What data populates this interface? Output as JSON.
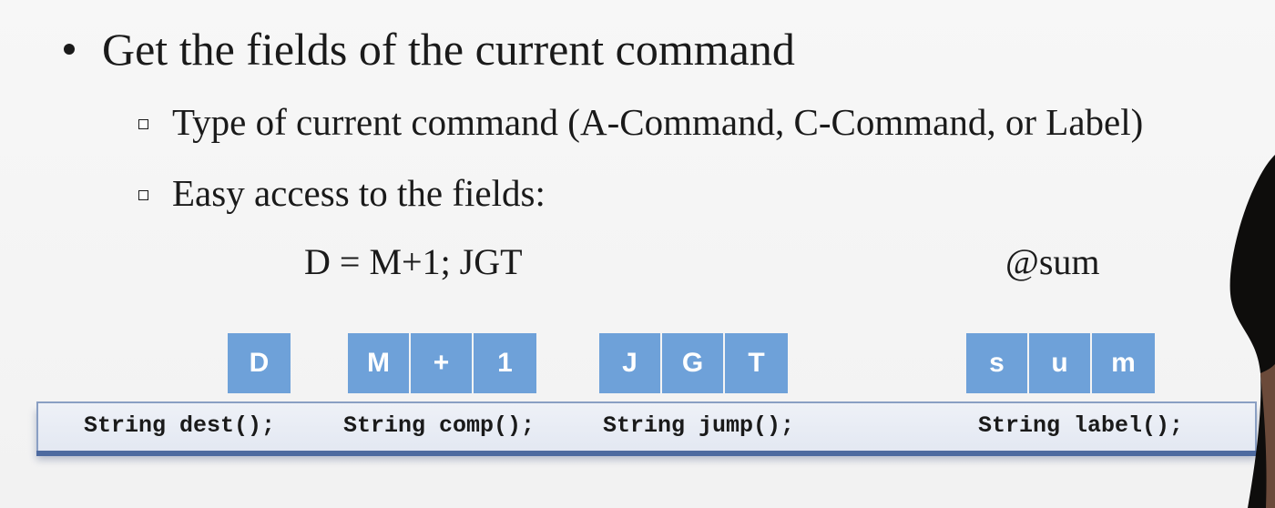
{
  "main_bullet": "Get the fields of the current command",
  "sub_bullets": [
    "Type of current command (A-Command, C-Command, or Label)",
    "Easy access to the fields:"
  ],
  "examples": {
    "c_command": "D = M+1; JGT",
    "a_command": "@sum"
  },
  "field_cells": {
    "dest": [
      "D"
    ],
    "comp": [
      "M",
      "+",
      "1"
    ],
    "jump": [
      "J",
      "G",
      "T"
    ],
    "label": [
      "s",
      "u",
      "m"
    ]
  },
  "api_methods": {
    "dest": "String dest();",
    "comp": "String comp();",
    "jump": "String jump();",
    "label": "String label();"
  },
  "colors": {
    "cell_fill": "#6ea1d9",
    "bar_shadow": "#4d6aa0"
  }
}
